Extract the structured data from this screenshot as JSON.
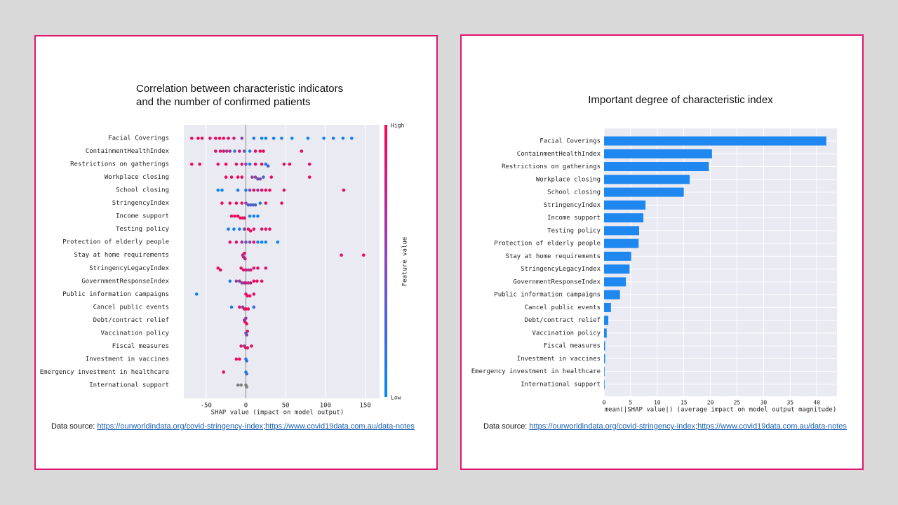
{
  "chart_data": [
    {
      "type": "beeswarm",
      "title": [
        "Correlation between characteristic indicators",
        "and the number of confirmed patients"
      ],
      "xlabel": "SHAP value (impact on model output)",
      "xlim": [
        -78,
        168
      ],
      "xticks": [
        -50,
        0,
        50,
        100,
        150
      ],
      "grid": true,
      "colorbar": {
        "label": "Feature value",
        "high": "High",
        "low": "Low",
        "colors": [
          "#008afb",
          "#ff0052"
        ],
        "missing_color": "#808080"
      },
      "rows": [
        {
          "name": "Facial Coverings",
          "shap": [
            -68,
            -60,
            -55,
            -45,
            -38,
            -33,
            -28,
            -22,
            -15,
            -5,
            10,
            20,
            25,
            35,
            45,
            58,
            78,
            98,
            110,
            122,
            133
          ],
          "feature": [
            0.9,
            0.95,
            0.9,
            0.85,
            0.95,
            0.9,
            0.95,
            0.9,
            0.85,
            0.5,
            0.1,
            0.05,
            0.05,
            0.05,
            0.05,
            0.05,
            0.05,
            0.05,
            0.05,
            0.05,
            0.05
          ]
        },
        {
          "name": "ContainmentHealthIndex",
          "shap": [
            -38,
            -32,
            -28,
            -24,
            -20,
            -14,
            -8,
            -2,
            5,
            12,
            18,
            22,
            70
          ],
          "feature": [
            0.9,
            0.85,
            0.8,
            0.6,
            0.7,
            0.1,
            0.9,
            0.3,
            0.1,
            0.9,
            0.95,
            0.9,
            0.95
          ]
        },
        {
          "name": "Restrictions on gatherings",
          "shap": [
            -68,
            -58,
            -35,
            -25,
            -12,
            -5,
            0,
            5,
            12,
            20,
            25,
            28,
            48,
            55,
            80
          ],
          "feature": [
            0.95,
            0.9,
            0.9,
            0.95,
            0.9,
            0.85,
            0.5,
            0.1,
            0.95,
            0.9,
            0.1,
            0.3,
            0.9,
            0.95,
            0.9
          ]
        },
        {
          "name": "Workplace closing",
          "shap": [
            -25,
            -18,
            -10,
            -5,
            8,
            12,
            15,
            18,
            22,
            32,
            80
          ],
          "feature": [
            0.95,
            0.9,
            0.95,
            0.9,
            0.6,
            0.5,
            0.4,
            0.5,
            0.3,
            0.9,
            0.9
          ]
        },
        {
          "name": "School closing",
          "shap": [
            -35,
            -30,
            -10,
            0,
            5,
            10,
            15,
            20,
            25,
            30,
            48,
            123
          ],
          "feature": [
            0.05,
            0.05,
            0.1,
            0.1,
            0.5,
            0.9,
            0.6,
            0.9,
            0.9,
            0.95,
            0.9,
            0.95
          ]
        },
        {
          "name": "StringencyIndex",
          "shap": [
            -30,
            -20,
            -12,
            -5,
            0,
            3,
            6,
            9,
            12,
            18,
            25,
            45
          ],
          "feature": [
            0.95,
            0.9,
            0.95,
            0.9,
            0.5,
            0.3,
            0.4,
            0.2,
            0.3,
            0.1,
            0.9,
            0.9
          ]
        },
        {
          "name": "Income support",
          "shap": [
            -18,
            -14,
            -10,
            -7,
            -4,
            -2,
            5,
            10,
            15
          ],
          "feature": [
            0.95,
            0.9,
            0.95,
            0.9,
            0.95,
            0.9,
            0.1,
            0.05,
            0.05
          ]
        },
        {
          "name": "Testing policy",
          "shap": [
            -22,
            -15,
            -8,
            -2,
            3,
            6,
            10,
            20,
            25,
            30
          ],
          "feature": [
            0.05,
            0.05,
            0.1,
            0.5,
            0.9,
            0.95,
            0.9,
            0.9,
            0.95,
            0.9
          ]
        },
        {
          "name": "Protection of elderly people",
          "shap": [
            -20,
            -12,
            -5,
            0,
            5,
            10,
            15,
            20,
            25,
            40
          ],
          "feature": [
            0.9,
            0.9,
            0.6,
            0.5,
            0.4,
            0.9,
            0.1,
            0.05,
            0.05,
            0.05
          ]
        },
        {
          "name": "Stay at home requirements",
          "shap": [
            -4,
            -3,
            -2,
            -1,
            120,
            148
          ],
          "feature": [
            0.6,
            0.8,
            0.9,
            0.7,
            0.9,
            0.95
          ]
        },
        {
          "name": "StringencyLegacyIndex",
          "shap": [
            -35,
            -32,
            -6,
            -3,
            0,
            3,
            6,
            10,
            15,
            25
          ],
          "feature": [
            0.9,
            0.95,
            0.9,
            0.85,
            0.9,
            0.5,
            0.9,
            0.8,
            0.9,
            0.9
          ]
        },
        {
          "name": "GovernmentResponseIndex",
          "shap": [
            -20,
            -12,
            -8,
            -5,
            -2,
            0,
            3,
            6,
            10,
            14,
            20
          ],
          "feature": [
            0.1,
            0.5,
            0.6,
            0.5,
            0.7,
            0.9,
            0.5,
            0.9,
            0.9,
            0.95,
            0.9
          ]
        },
        {
          "name": "Public information campaigns",
          "shap": [
            -62,
            0,
            2,
            5,
            10
          ],
          "feature": [
            0.05,
            0.9,
            0.95,
            0.9,
            0.9
          ]
        },
        {
          "name": "Cancel public events",
          "shap": [
            -18,
            -8,
            -4,
            -2,
            0,
            3,
            10
          ],
          "feature": [
            0.1,
            0.9,
            0.5,
            0.9,
            0.9,
            0.9,
            0.2
          ]
        },
        {
          "name": "Debt/contract relief",
          "shap": [
            -2,
            -1,
            0,
            1
          ],
          "feature": [
            0.5,
            0.9,
            0.6,
            0.9
          ]
        },
        {
          "name": "Vaccination policy",
          "shap": [
            0,
            1,
            2
          ],
          "feature": [
            0.2,
            0.5,
            0.9
          ]
        },
        {
          "name": "Fiscal measures",
          "shap": [
            -6,
            -2,
            0,
            2,
            7
          ],
          "feature": [
            0.9,
            0.5,
            0.9,
            0.9,
            0.9
          ]
        },
        {
          "name": "Investment in vaccines",
          "shap": [
            -12,
            -8,
            0,
            1
          ],
          "feature": [
            0.9,
            0.9,
            0.1,
            0.2
          ]
        },
        {
          "name": "Emergency investment in healthcare",
          "shap": [
            -28,
            0,
            1
          ],
          "feature": [
            0.9,
            0.1,
            0.2
          ]
        },
        {
          "name": "International support",
          "shap": [
            -10,
            -6,
            0,
            1
          ],
          "feature": [
            null,
            null,
            null,
            null
          ]
        }
      ],
      "source": {
        "label": "Data source:",
        "links": [
          "https://ourworldindata.org/covid-stringency-index",
          "https://www.covid19data.com.au/data-notes"
        ],
        "separator": ";"
      }
    },
    {
      "type": "bar",
      "orientation": "horizontal",
      "title": "Important degree of characteristic index",
      "xlabel": "mean(|SHAP value|) (average impact on model output magnitude)",
      "categories": [
        "Facial Coverings",
        "ContainmentHealthIndex",
        "Restrictions on gatherings",
        "Workplace closing",
        "School closing",
        "StringencyIndex",
        "Income support",
        "Testing policy",
        "Protection of elderly people",
        "Stay at home requirements",
        "StringencyLegacyIndex",
        "GovernmentResponseIndex",
        "Public information campaigns",
        "Cancel public events",
        "Debt/contract relief",
        "Vaccination policy",
        "Fiscal measures",
        "Investment in vaccines",
        "Emergency investment in healthcare",
        "International support"
      ],
      "values": [
        41.8,
        20.3,
        19.7,
        16.1,
        15.0,
        7.8,
        7.4,
        6.6,
        6.5,
        5.1,
        4.8,
        4.1,
        3.0,
        1.3,
        0.8,
        0.5,
        0.2,
        0.2,
        0.1,
        0.1
      ],
      "color": "#1e88f0",
      "xlim": [
        0,
        43.8
      ],
      "xticks": [
        0,
        5,
        10,
        15,
        20,
        25,
        30,
        35,
        40
      ],
      "grid": true,
      "source": {
        "label": "Data source:",
        "links": [
          "https://ourworldindata.org/covid-stringency-index",
          "https://www.covid19data.com.au/data-notes"
        ],
        "separator": ";"
      }
    }
  ]
}
